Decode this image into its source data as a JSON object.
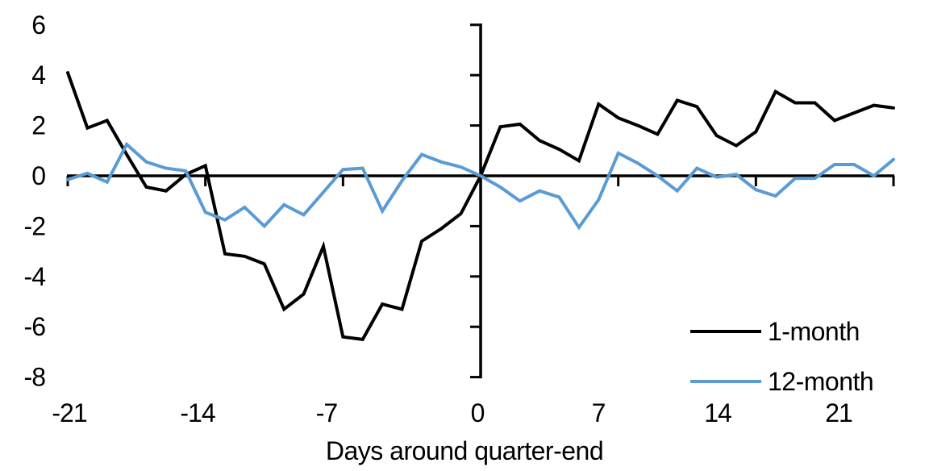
{
  "chart_data": {
    "type": "line",
    "title": "",
    "xlabel": "Days around quarter-end",
    "ylabel": "",
    "xlim": [
      -21,
      21
    ],
    "ylim": [
      -8,
      6
    ],
    "grid": false,
    "legend_position": "inside-right",
    "axes_cross_at": [
      0,
      0
    ],
    "x_ticks": [
      -21,
      -14,
      -7,
      0,
      7,
      14,
      21
    ],
    "y_ticks": [
      6,
      4,
      2,
      0,
      -2,
      -4,
      -6,
      -8
    ],
    "x": [
      -21,
      -20,
      -19,
      -18,
      -17,
      -16,
      -15,
      -14,
      -13,
      -12,
      -11,
      -10,
      -9,
      -8,
      -7,
      -6,
      -5,
      -4,
      -3,
      -2,
      -1,
      0,
      1,
      2,
      3,
      4,
      5,
      6,
      7,
      8,
      9,
      10,
      11,
      12,
      13,
      14,
      15,
      16,
      17,
      18,
      19,
      20,
      21
    ],
    "series": [
      {
        "name": "1-month",
        "color": "#000000",
        "values": [
          4.1,
          1.9,
          2.2,
          0.85,
          -0.45,
          -0.6,
          0.05,
          0.4,
          -3.1,
          -3.2,
          -3.5,
          -5.3,
          -4.7,
          -2.8,
          -6.4,
          -6.5,
          -5.1,
          -5.3,
          -2.6,
          -2.1,
          -1.5,
          0.0,
          1.95,
          2.05,
          1.4,
          1.05,
          0.6,
          2.85,
          2.3,
          2.0,
          1.65,
          3.0,
          2.75,
          1.6,
          1.2,
          1.75,
          3.35,
          2.9,
          2.9,
          2.2,
          2.5,
          2.8,
          2.7
        ]
      },
      {
        "name": "12-month",
        "color": "#5B9BD5",
        "values": [
          -0.15,
          0.1,
          -0.25,
          1.25,
          0.55,
          0.3,
          0.2,
          -1.45,
          -1.75,
          -1.25,
          -2.0,
          -1.15,
          -1.55,
          -0.65,
          0.25,
          0.3,
          -1.4,
          -0.2,
          0.85,
          0.55,
          0.35,
          0.0,
          -0.45,
          -1.0,
          -0.6,
          -0.85,
          -2.05,
          -0.95,
          0.9,
          0.5,
          0.0,
          -0.6,
          0.3,
          -0.05,
          0.05,
          -0.55,
          -0.8,
          -0.1,
          -0.1,
          0.45,
          0.45,
          0.0,
          0.65
        ]
      }
    ]
  }
}
